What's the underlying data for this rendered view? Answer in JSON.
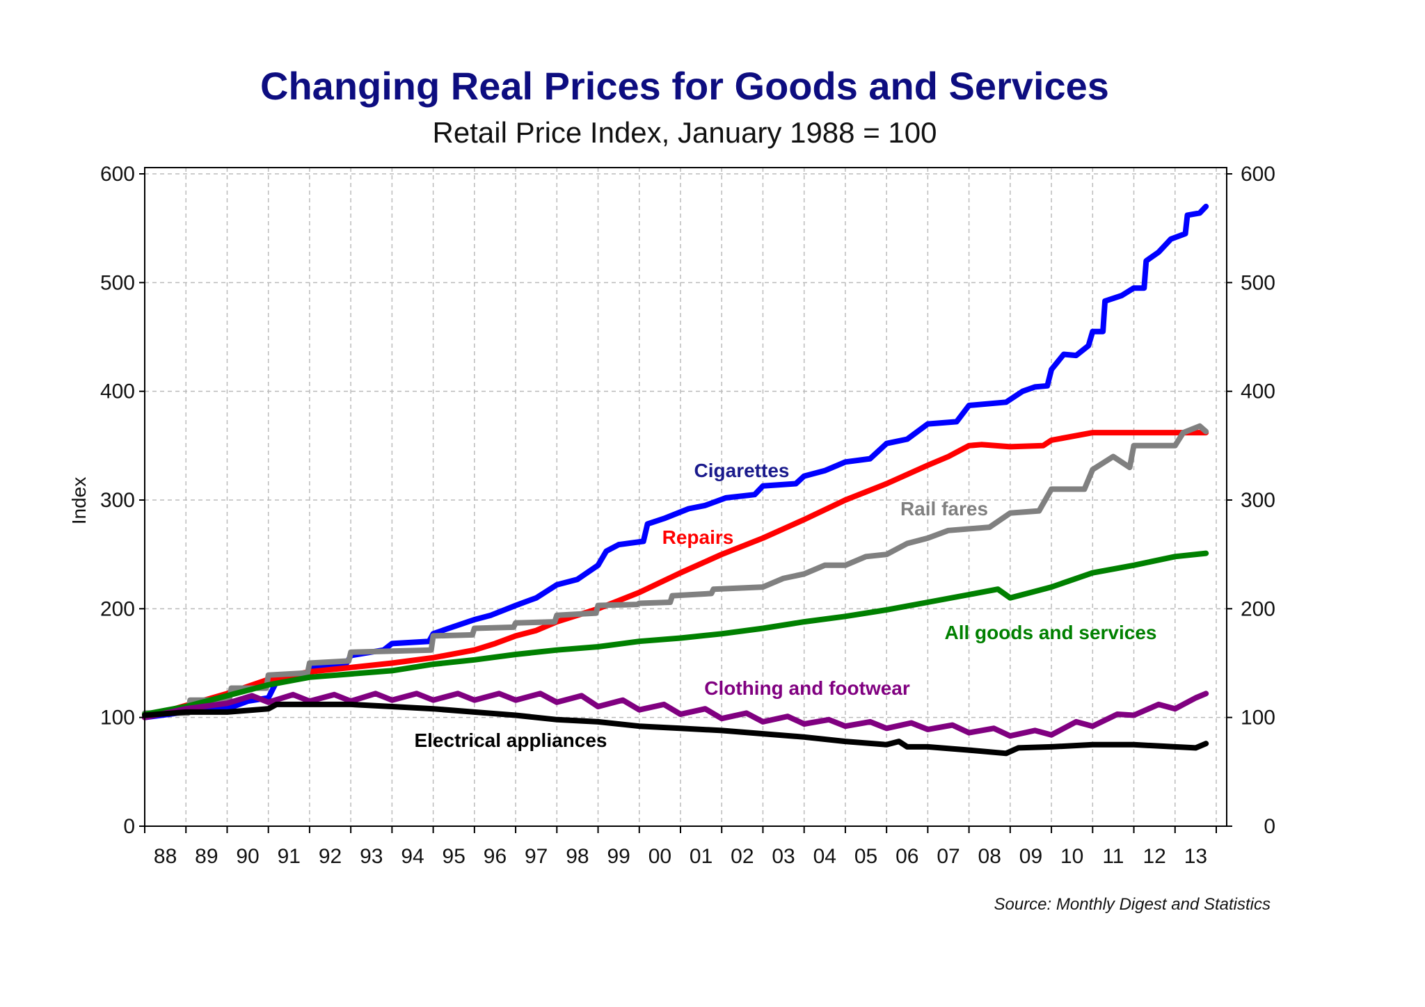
{
  "chart_data": {
    "type": "line",
    "title": "Changing Real Prices for Goods and Services",
    "subtitle": "Retail Price Index, January 1988 = 100",
    "ylabel": "Index",
    "xlabel": "",
    "source": "Source: Monthly Digest and Statistics",
    "ylim": [
      0,
      600
    ],
    "xlim": [
      1988,
      2014
    ],
    "y_ticks": [
      "0",
      "100",
      "200",
      "300",
      "400",
      "500",
      "600"
    ],
    "x_tick_labels": [
      "88",
      "89",
      "90",
      "91",
      "92",
      "93",
      "94",
      "95",
      "96",
      "97",
      "98",
      "99",
      "00",
      "01",
      "02",
      "03",
      "04",
      "05",
      "06",
      "07",
      "08",
      "09",
      "10",
      "11",
      "12",
      "13"
    ],
    "grid": true,
    "dual_y_axis": true,
    "series": [
      {
        "name": "Cigarettes",
        "color": "#0000ff",
        "label_color": "#1a1a8c",
        "points": [
          [
            1988,
            100
          ],
          [
            1989,
            105
          ],
          [
            1990,
            108
          ],
          [
            1990.5,
            115
          ],
          [
            1991,
            118
          ],
          [
            1991.2,
            133
          ],
          [
            1991.9,
            138
          ],
          [
            1992.1,
            146
          ],
          [
            1992.9,
            150
          ],
          [
            1993,
            157
          ],
          [
            1993.8,
            162
          ],
          [
            1994,
            168
          ],
          [
            1994.9,
            170
          ],
          [
            1995,
            177
          ],
          [
            1995.3,
            181
          ],
          [
            1996,
            190
          ],
          [
            1996.4,
            194
          ],
          [
            1997,
            203
          ],
          [
            1997.5,
            210
          ],
          [
            1998,
            222
          ],
          [
            1998.5,
            227
          ],
          [
            1999,
            240
          ],
          [
            1999.2,
            253
          ],
          [
            1999.5,
            259
          ],
          [
            2000.1,
            262
          ],
          [
            2000.2,
            278
          ],
          [
            2000.6,
            283
          ],
          [
            2001.2,
            292
          ],
          [
            2001.6,
            295
          ],
          [
            2002.1,
            302
          ],
          [
            2002.8,
            305
          ],
          [
            2003,
            313
          ],
          [
            2003.8,
            315
          ],
          [
            2004,
            322
          ],
          [
            2004.5,
            327
          ],
          [
            2005,
            335
          ],
          [
            2005.6,
            338
          ],
          [
            2006,
            352
          ],
          [
            2006.5,
            356
          ],
          [
            2007,
            370
          ],
          [
            2007.7,
            372
          ],
          [
            2008,
            387
          ],
          [
            2008.9,
            390
          ],
          [
            2009.3,
            400
          ],
          [
            2009.6,
            404
          ],
          [
            2009.9,
            405
          ],
          [
            2010,
            420
          ],
          [
            2010.3,
            434
          ],
          [
            2010.6,
            433
          ],
          [
            2010.9,
            442
          ],
          [
            2011,
            455
          ],
          [
            2011.25,
            455
          ],
          [
            2011.3,
            483
          ],
          [
            2011.7,
            488
          ],
          [
            2012,
            495
          ],
          [
            2012.25,
            495
          ],
          [
            2012.3,
            520
          ],
          [
            2012.6,
            528
          ],
          [
            2012.9,
            540
          ],
          [
            2013.25,
            545
          ],
          [
            2013.3,
            562
          ],
          [
            2013.6,
            564
          ],
          [
            2013.75,
            570
          ]
        ]
      },
      {
        "name": "Repairs",
        "color": "#ff0000",
        "label_color": "#ff0000",
        "points": [
          [
            1988,
            100
          ],
          [
            1990,
            122
          ],
          [
            1991,
            135
          ],
          [
            1992,
            142
          ],
          [
            1993,
            146
          ],
          [
            1994,
            150
          ],
          [
            1995,
            155
          ],
          [
            1996,
            162
          ],
          [
            1996.5,
            168
          ],
          [
            1997,
            175
          ],
          [
            1997.5,
            180
          ],
          [
            1998,
            188
          ],
          [
            1999,
            200
          ],
          [
            2000,
            215
          ],
          [
            2001,
            233
          ],
          [
            2002,
            250
          ],
          [
            2003,
            265
          ],
          [
            2004,
            282
          ],
          [
            2005,
            300
          ],
          [
            2006,
            315
          ],
          [
            2007,
            332
          ],
          [
            2007.5,
            340
          ],
          [
            2008,
            350
          ],
          [
            2008.3,
            351
          ],
          [
            2009,
            349
          ],
          [
            2009.8,
            350
          ],
          [
            2010,
            355
          ],
          [
            2011,
            362
          ],
          [
            2013.75,
            362
          ]
        ]
      },
      {
        "name": "Rail fares",
        "color": "#808080",
        "label_color": "#808080",
        "points": [
          [
            1988,
            104
          ],
          [
            1989.05,
            104
          ],
          [
            1989.1,
            116
          ],
          [
            1990.05,
            116
          ],
          [
            1990.1,
            127
          ],
          [
            1990.95,
            127
          ],
          [
            1991,
            139
          ],
          [
            1991.95,
            141
          ],
          [
            1992,
            150
          ],
          [
            1992.95,
            152
          ],
          [
            1993,
            160
          ],
          [
            1994.95,
            162
          ],
          [
            1995,
            175
          ],
          [
            1995.95,
            176
          ],
          [
            1996,
            182
          ],
          [
            1996.95,
            183
          ],
          [
            1997,
            187
          ],
          [
            1997.95,
            188
          ],
          [
            1998,
            194
          ],
          [
            1998.95,
            196
          ],
          [
            1999,
            203
          ],
          [
            1999.95,
            204
          ],
          [
            2000,
            205
          ],
          [
            2000.75,
            206
          ],
          [
            2000.8,
            212
          ],
          [
            2001.75,
            214
          ],
          [
            2001.8,
            218
          ],
          [
            2003,
            220
          ],
          [
            2003.5,
            228
          ],
          [
            2004,
            232
          ],
          [
            2004.5,
            240
          ],
          [
            2005,
            240
          ],
          [
            2005.5,
            248
          ],
          [
            2006,
            250
          ],
          [
            2006.5,
            260
          ],
          [
            2007,
            265
          ],
          [
            2007.5,
            272
          ],
          [
            2008.5,
            275
          ],
          [
            2009,
            288
          ],
          [
            2009.7,
            290
          ],
          [
            2010,
            310
          ],
          [
            2010.8,
            310
          ],
          [
            2011,
            328
          ],
          [
            2011.5,
            340
          ],
          [
            2011.9,
            330
          ],
          [
            2012,
            350
          ],
          [
            2013,
            350
          ],
          [
            2013.2,
            362
          ],
          [
            2013.6,
            368
          ],
          [
            2013.75,
            363
          ]
        ]
      },
      {
        "name": "All goods and services",
        "color": "#008000",
        "label_color": "#008000",
        "points": [
          [
            1988,
            103
          ],
          [
            1989,
            110
          ],
          [
            1990,
            120
          ],
          [
            1991,
            130
          ],
          [
            1992,
            137
          ],
          [
            1993,
            140
          ],
          [
            1994,
            143
          ],
          [
            1995,
            149
          ],
          [
            1996,
            153
          ],
          [
            1997,
            158
          ],
          [
            1998,
            162
          ],
          [
            1999,
            165
          ],
          [
            2000,
            170
          ],
          [
            2001,
            173
          ],
          [
            2002,
            177
          ],
          [
            2003,
            182
          ],
          [
            2004,
            188
          ],
          [
            2005,
            193
          ],
          [
            2006,
            199
          ],
          [
            2007,
            206
          ],
          [
            2008,
            213
          ],
          [
            2008.7,
            218
          ],
          [
            2009,
            210
          ],
          [
            2010,
            220
          ],
          [
            2011,
            233
          ],
          [
            2012,
            240
          ],
          [
            2013,
            248
          ],
          [
            2013.75,
            251
          ]
        ]
      },
      {
        "name": "Clothing and footwear",
        "color": "#800080",
        "label_color": "#800080",
        "points": [
          [
            1988,
            100
          ],
          [
            1989,
            108
          ],
          [
            1990,
            113
          ],
          [
            1990.6,
            120
          ],
          [
            1991,
            114
          ],
          [
            1991.6,
            121
          ],
          [
            1992,
            115
          ],
          [
            1992.6,
            121
          ],
          [
            1993,
            115
          ],
          [
            1993.6,
            122
          ],
          [
            1994,
            116
          ],
          [
            1994.6,
            122
          ],
          [
            1995,
            116
          ],
          [
            1995.6,
            122
          ],
          [
            1996,
            116
          ],
          [
            1996.6,
            122
          ],
          [
            1997,
            116
          ],
          [
            1997.6,
            122
          ],
          [
            1998,
            114
          ],
          [
            1998.6,
            120
          ],
          [
            1999,
            110
          ],
          [
            1999.6,
            116
          ],
          [
            2000,
            107
          ],
          [
            2000.6,
            112
          ],
          [
            2001,
            103
          ],
          [
            2001.6,
            108
          ],
          [
            2002,
            99
          ],
          [
            2002.6,
            104
          ],
          [
            2003,
            96
          ],
          [
            2003.6,
            101
          ],
          [
            2004,
            94
          ],
          [
            2004.6,
            98
          ],
          [
            2005,
            92
          ],
          [
            2005.6,
            96
          ],
          [
            2006,
            90
          ],
          [
            2006.6,
            95
          ],
          [
            2007,
            89
          ],
          [
            2007.6,
            93
          ],
          [
            2008,
            86
          ],
          [
            2008.6,
            90
          ],
          [
            2009,
            83
          ],
          [
            2009.6,
            88
          ],
          [
            2010,
            84
          ],
          [
            2010.6,
            96
          ],
          [
            2011,
            92
          ],
          [
            2011.6,
            103
          ],
          [
            2012,
            102
          ],
          [
            2012.6,
            112
          ],
          [
            2013,
            108
          ],
          [
            2013.5,
            118
          ],
          [
            2013.75,
            122
          ]
        ]
      },
      {
        "name": "Electrical appliances",
        "color": "#000000",
        "label_color": "#000000",
        "points": [
          [
            1988,
            102
          ],
          [
            1989,
            105
          ],
          [
            1990,
            105
          ],
          [
            1991,
            108
          ],
          [
            1991.2,
            112
          ],
          [
            1992,
            112
          ],
          [
            1993,
            112
          ],
          [
            1994,
            110
          ],
          [
            1995,
            108
          ],
          [
            1996,
            105
          ],
          [
            1997,
            102
          ],
          [
            1998,
            98
          ],
          [
            1999,
            96
          ],
          [
            2000,
            92
          ],
          [
            2001,
            90
          ],
          [
            2002,
            88
          ],
          [
            2003,
            85
          ],
          [
            2004,
            82
          ],
          [
            2005,
            78
          ],
          [
            2006,
            75
          ],
          [
            2006.3,
            78
          ],
          [
            2006.5,
            73
          ],
          [
            2007,
            73
          ],
          [
            2008,
            70
          ],
          [
            2008.9,
            67
          ],
          [
            2009.2,
            72
          ],
          [
            2010,
            73
          ],
          [
            2011,
            75
          ],
          [
            2012,
            75
          ],
          [
            2013,
            73
          ],
          [
            2013.5,
            72
          ],
          [
            2013.75,
            76
          ]
        ]
      }
    ]
  }
}
